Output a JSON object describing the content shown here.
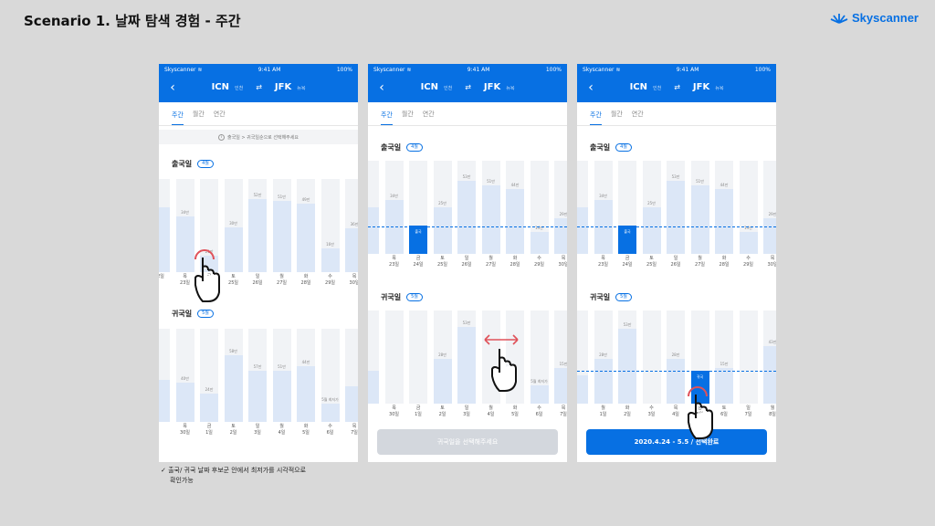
{
  "slide": {
    "title": "Scenario 1. 날짜 탐색 경험 - 주간",
    "brand": "Skyscanner",
    "caption_line1": "✓ 출국/ 귀국 날짜 후보군 안에서 최저가를 시각적으로",
    "caption_line2": "확인가능"
  },
  "colors": {
    "primary": "#0770e3",
    "bar": "#dce7f7",
    "bar_bg": "#f1f3f6",
    "bg": "#d9d9d9",
    "swipe": "#e0525a"
  },
  "screens": [
    {
      "status": {
        "carrier": "Skyscanner ≋",
        "time": "9:41 AM",
        "battery": "100%"
      },
      "nav": {
        "back": "‹",
        "from": "ICN",
        "from_sub": "인천",
        "swap": "⇄",
        "to": "JFK",
        "to_sub": "뉴욕"
      },
      "tabs": [
        "주간",
        "월간",
        "연간"
      ],
      "info": "출국일 > 귀국일순으로 선택해주세요",
      "depart_label": "출국일",
      "depart_badge": "4월",
      "return_label": "귀국일",
      "return_badge": "5월",
      "depart_bars": {
        "days": [
          "",
          "목",
          "금",
          "토",
          "일",
          "월",
          "화",
          "수",
          "목"
        ],
        "dates": [
          "2일",
          "23일",
          "24일",
          "25일",
          "26일",
          "27일",
          "28일",
          "29일",
          "30일"
        ],
        "values": [
          "",
          "34만",
          "21만",
          "30만",
          "52만",
          "51만",
          "49만",
          "16만",
          "36만"
        ],
        "levels": [
          0.7,
          0.6,
          0.18,
          0.48,
          0.78,
          0.76,
          0.74,
          0.25,
          0.47
        ],
        "selected": -1
      },
      "return_bars": {
        "days": [
          "",
          "목",
          "금",
          "토",
          "일",
          "월",
          "화",
          "수",
          "목"
        ],
        "dates": [
          "",
          "30일",
          "1일",
          "2일",
          "3일",
          "4일",
          "5일",
          "6일",
          "7일"
        ],
        "values": [
          "",
          "40만",
          "24만",
          "58만",
          "57만",
          "51만",
          "44만",
          "5월 최저가",
          ""
        ],
        "levels": [
          0.45,
          0.42,
          0.3,
          0.72,
          0.55,
          0.55,
          0.6,
          0.2,
          0.38
        ],
        "selected": -1
      }
    },
    {
      "status": {
        "carrier": "Skyscanner ≋",
        "time": "9:41 AM",
        "battery": "100%"
      },
      "nav": {
        "back": "‹",
        "from": "ICN",
        "from_sub": "인천",
        "swap": "⇄",
        "to": "JFK",
        "to_sub": "뉴욕"
      },
      "tabs": [
        "주간",
        "월간",
        "연간"
      ],
      "depart_label": "출국일",
      "depart_badge": "4월",
      "return_label": "귀국일",
      "return_badge": "5월",
      "depart_bars": {
        "days": [
          "",
          "목",
          "금",
          "토",
          "일",
          "월",
          "화",
          "수",
          "목"
        ],
        "dates": [
          "",
          "23일",
          "24일",
          "25일",
          "26일",
          "27일",
          "28일",
          "29일",
          "30일"
        ],
        "values": [
          "",
          "34만",
          "출국",
          "25만",
          "53만",
          "51만",
          "44만",
          "14만",
          "29만"
        ],
        "levels": [
          0.5,
          0.58,
          0.3,
          0.5,
          0.78,
          0.74,
          0.7,
          0.24,
          0.38
        ],
        "selected": 2
      },
      "return_bars": {
        "days": [
          "",
          "목",
          "금",
          "토",
          "일",
          "월",
          "화",
          "수",
          "목"
        ],
        "dates": [
          "",
          "30일",
          "1일",
          "2일",
          "3일",
          "4일",
          "5일",
          "6일",
          "7일"
        ],
        "values": [
          "",
          "",
          "",
          "28만",
          "53만",
          "",
          "",
          "5월 최저가",
          "15만"
        ],
        "levels": [
          0.35,
          0.0,
          0.0,
          0.48,
          0.82,
          0.0,
          0.0,
          0.2,
          0.38
        ],
        "selected": -1
      },
      "cta": "귀국일을 선택해주세요"
    },
    {
      "status": {
        "carrier": "Skyscanner ≋",
        "time": "9:41 AM",
        "battery": "100%"
      },
      "nav": {
        "back": "‹",
        "from": "ICN",
        "from_sub": "인천",
        "swap": "⇄",
        "to": "JFK",
        "to_sub": "뉴욕"
      },
      "tabs": [
        "주간",
        "월간",
        "연간"
      ],
      "depart_label": "출국일",
      "depart_badge": "4월",
      "return_label": "귀국일",
      "return_badge": "5월",
      "depart_bars": {
        "days": [
          "",
          "목",
          "금",
          "토",
          "일",
          "월",
          "화",
          "수",
          "목"
        ],
        "dates": [
          "",
          "23일",
          "24일",
          "25일",
          "26일",
          "27일",
          "28일",
          "29일",
          "30일"
        ],
        "values": [
          "",
          "34만",
          "출국",
          "25만",
          "53만",
          "51만",
          "44만",
          "14만",
          "29만"
        ],
        "levels": [
          0.5,
          0.58,
          0.3,
          0.5,
          0.78,
          0.74,
          0.7,
          0.24,
          0.38
        ],
        "selected": 2
      },
      "return_bars": {
        "days": [
          "",
          "월",
          "화",
          "수",
          "목",
          "금",
          "토",
          "일",
          "월"
        ],
        "dates": [
          "",
          "1일",
          "2일",
          "3일",
          "4일",
          "5일",
          "6일",
          "7일",
          "8일"
        ],
        "values": [
          "",
          "28만",
          "53만",
          "",
          "28만",
          "귀국",
          "15만",
          "",
          "43만"
        ],
        "levels": [
          0.3,
          0.48,
          0.8,
          0.0,
          0.48,
          0.35,
          0.38,
          0.0,
          0.62
        ],
        "selected": 5
      },
      "cta": "2020.4.24 - 5.5 / 선택완료"
    }
  ]
}
